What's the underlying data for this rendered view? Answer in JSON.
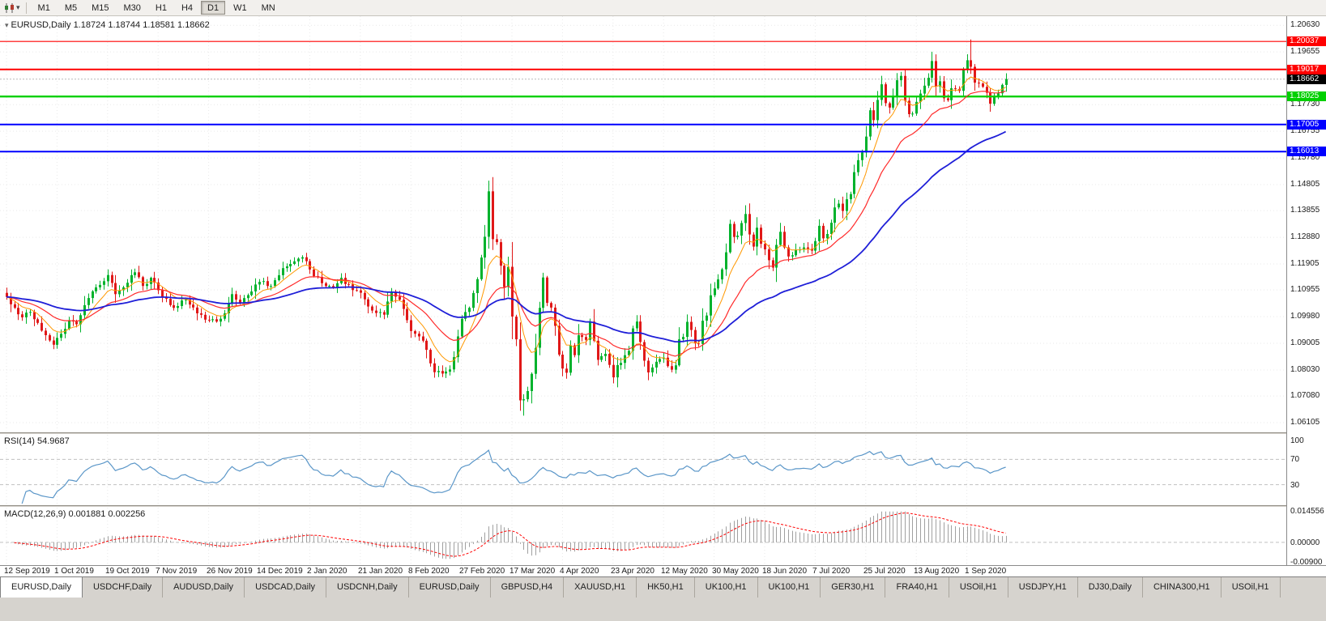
{
  "toolbar": {
    "timeframes": [
      "M1",
      "M5",
      "M15",
      "M30",
      "H1",
      "H4",
      "D1",
      "W1",
      "MN"
    ],
    "active_timeframe": "D1",
    "chart_icon": "candlestick-chart-icon",
    "dropdown_icon": "chevron-down-icon"
  },
  "header": {
    "symbol": "EURUSD,Daily",
    "ohlc": "1.18724 1.18744 1.18581 1.18662"
  },
  "chart_data": {
    "type": "candlestick",
    "title": "EURUSD,Daily",
    "ohlc_display": "1.18724 1.18744 1.18581 1.18662",
    "x_labels": [
      "12 Sep 2019",
      "1 Oct 2019",
      "19 Oct 2019",
      "7 Nov 2019",
      "26 Nov 2019",
      "14 Dec 2019",
      "2 Jan 2020",
      "21 Jan 2020",
      "8 Feb 2020",
      "27 Feb 2020",
      "17 Mar 2020",
      "4 Apr 2020",
      "23 Apr 2020",
      "12 May 2020",
      "30 May 2020",
      "18 Jun 2020",
      "7 Jul 2020",
      "25 Jul 2020",
      "13 Aug 2020",
      "1 Sep 2020"
    ],
    "y_axis": {
      "top_price": 1.2096,
      "bottom_price": 1.0575,
      "ticks": [
        "1.20630",
        "1.19655",
        "1.17730",
        "1.16755",
        "1.15780",
        "1.14805",
        "1.13855",
        "1.12880",
        "1.11905",
        "1.10955",
        "1.09980",
        "1.09005",
        "1.08030",
        "1.07080",
        "1.06105"
      ]
    },
    "levels": [
      {
        "price": 1.20037,
        "label": "1.20037",
        "color": "#ff0000",
        "width": 1.2
      },
      {
        "price": 1.19017,
        "label": "1.19017",
        "color": "#ff0000",
        "width": 2
      },
      {
        "price": 1.18025,
        "label": "1.18025",
        "color": "#00d000",
        "width": 2.4
      },
      {
        "price": 1.17005,
        "label": "1.17005",
        "color": "#0000ff",
        "width": 2
      },
      {
        "price": 1.16013,
        "label": "1.16013",
        "color": "#0000ff",
        "width": 2
      }
    ],
    "bid": {
      "price": 1.18662,
      "label": "1.18662",
      "box_color": "#000000"
    },
    "up_color": "#00b22c",
    "down_color": "#e01818",
    "moving_averages": [
      {
        "period": 8,
        "method": "ema",
        "color": "#ff9800",
        "width": 1
      },
      {
        "period": 21,
        "method": "ema",
        "color": "#ff2a2a",
        "width": 1.2
      },
      {
        "period": 55,
        "method": "ema",
        "color": "#1f1fd8",
        "width": 1.8
      }
    ],
    "bars": {
      "count": 258,
      "anchors": [
        [
          0,
          1.107
        ],
        [
          2,
          1.103
        ],
        [
          4,
          1.0995
        ],
        [
          6,
          1.1015
        ],
        [
          8,
          1.0975
        ],
        [
          10,
          1.093
        ],
        [
          12,
          1.0895
        ],
        [
          14,
          1.0935
        ],
        [
          16,
          1.0985
        ],
        [
          18,
          1.097
        ],
        [
          20,
          1.104
        ],
        [
          23,
          1.1105
        ],
        [
          26,
          1.115
        ],
        [
          28,
          1.108
        ],
        [
          30,
          1.1105
        ],
        [
          33,
          1.116
        ],
        [
          35,
          1.111
        ],
        [
          37,
          1.114
        ],
        [
          40,
          1.107
        ],
        [
          43,
          1.103
        ],
        [
          46,
          1.106
        ],
        [
          49,
          1.101
        ],
        [
          52,
          1.0985
        ],
        [
          54,
          1.098
        ],
        [
          56,
          1.101
        ],
        [
          58,
          1.108
        ],
        [
          60,
          1.105
        ],
        [
          63,
          1.109
        ],
        [
          65,
          1.1125
        ],
        [
          68,
          1.111
        ],
        [
          71,
          1.1175
        ],
        [
          74,
          1.12
        ],
        [
          76,
          1.1215
        ],
        [
          78,
          1.117
        ],
        [
          81,
          1.112
        ],
        [
          84,
          1.1105
        ],
        [
          86,
          1.114
        ],
        [
          89,
          1.1095
        ],
        [
          91,
          1.1085
        ],
        [
          94,
          1.102
        ],
        [
          97,
          1.1005
        ],
        [
          99,
          1.109
        ],
        [
          101,
          1.106
        ],
        [
          104,
          1.0945
        ],
        [
          107,
          1.091
        ],
        [
          110,
          1.0795
        ],
        [
          112,
          1.079
        ],
        [
          114,
          1.0805
        ],
        [
          115,
          1.085
        ],
        [
          117,
          1.099
        ],
        [
          119,
          1.103
        ],
        [
          121,
          1.1135
        ],
        [
          123,
          1.129
        ],
        [
          124,
          1.1456
        ],
        [
          125,
          1.1281
        ],
        [
          126,
          1.127
        ],
        [
          127,
          1.1184
        ],
        [
          128,
          1.1106
        ],
        [
          129,
          1.118
        ],
        [
          130,
          1.0998
        ],
        [
          131,
          1.0915
        ],
        [
          132,
          1.0692
        ],
        [
          133,
          1.0696
        ],
        [
          134,
          1.0726
        ],
        [
          135,
          1.0789
        ],
        [
          136,
          1.0884
        ],
        [
          137,
          1.103
        ],
        [
          138,
          1.1141
        ],
        [
          139,
          1.1048
        ],
        [
          140,
          1.1031
        ],
        [
          141,
          1.0964
        ],
        [
          142,
          1.0859
        ],
        [
          143,
          1.0808
        ],
        [
          144,
          1.0793
        ],
        [
          145,
          1.0893
        ],
        [
          146,
          1.0857
        ],
        [
          147,
          1.093
        ],
        [
          149,
          1.0913
        ],
        [
          150,
          1.098
        ],
        [
          151,
          1.091
        ],
        [
          152,
          1.084
        ],
        [
          154,
          1.0862
        ],
        [
          156,
          1.0776
        ],
        [
          157,
          1.0821
        ],
        [
          158,
          1.0829
        ],
        [
          160,
          1.0873
        ],
        [
          161,
          1.0955
        ],
        [
          162,
          1.098
        ],
        [
          163,
          1.0905
        ],
        [
          164,
          1.0837
        ],
        [
          165,
          1.0794
        ],
        [
          167,
          1.0833
        ],
        [
          169,
          1.0848
        ],
        [
          170,
          1.0817
        ],
        [
          171,
          1.0804
        ],
        [
          172,
          1.082
        ],
        [
          173,
          1.0915
        ],
        [
          174,
          1.0924
        ],
        [
          175,
          1.0979
        ],
        [
          176,
          1.0949
        ],
        [
          177,
          1.09
        ],
        [
          178,
          1.0898
        ],
        [
          179,
          1.0983
        ],
        [
          180,
          1.1002
        ],
        [
          181,
          1.1076
        ],
        [
          182,
          1.1101
        ],
        [
          183,
          1.1134
        ],
        [
          184,
          1.1171
        ],
        [
          185,
          1.1233
        ],
        [
          186,
          1.1337
        ],
        [
          187,
          1.1289
        ],
        [
          188,
          1.1294
        ],
        [
          189,
          1.134
        ],
        [
          190,
          1.1373
        ],
        [
          191,
          1.1298
        ],
        [
          192,
          1.1254
        ],
        [
          193,
          1.1323
        ],
        [
          194,
          1.1264
        ],
        [
          195,
          1.1244
        ],
        [
          196,
          1.1204
        ],
        [
          197,
          1.1177
        ],
        [
          198,
          1.126
        ],
        [
          199,
          1.1308
        ],
        [
          200,
          1.1251
        ],
        [
          201,
          1.1218
        ],
        [
          203,
          1.1242
        ],
        [
          205,
          1.1251
        ],
        [
          207,
          1.1239
        ],
        [
          208,
          1.1274
        ],
        [
          209,
          1.133
        ],
        [
          210,
          1.1284
        ],
        [
          211,
          1.13
        ],
        [
          212,
          1.1341
        ],
        [
          213,
          1.1397
        ],
        [
          214,
          1.1411
        ],
        [
          215,
          1.1384
        ],
        [
          216,
          1.1427
        ],
        [
          217,
          1.1446
        ],
        [
          218,
          1.1526
        ],
        [
          219,
          1.157
        ],
        [
          220,
          1.1598
        ],
        [
          221,
          1.1656
        ],
        [
          222,
          1.1752
        ],
        [
          223,
          1.1716
        ],
        [
          224,
          1.179
        ],
        [
          225,
          1.1847
        ],
        [
          226,
          1.1778
        ],
        [
          227,
          1.1762
        ],
        [
          228,
          1.1803
        ],
        [
          229,
          1.1862
        ],
        [
          230,
          1.1878
        ],
        [
          231,
          1.1787
        ],
        [
          232,
          1.1738
        ],
        [
          233,
          1.174
        ],
        [
          234,
          1.1783
        ],
        [
          235,
          1.1813
        ],
        [
          236,
          1.1842
        ],
        [
          237,
          1.1871
        ],
        [
          238,
          1.1932
        ],
        [
          239,
          1.1839
        ],
        [
          240,
          1.1858
        ],
        [
          241,
          1.1796
        ],
        [
          242,
          1.1789
        ],
        [
          243,
          1.1833
        ],
        [
          244,
          1.183
        ],
        [
          245,
          1.1823
        ],
        [
          246,
          1.1903
        ],
        [
          247,
          1.1935
        ],
        [
          248,
          1.1911
        ],
        [
          249,
          1.1853
        ],
        [
          250,
          1.185
        ],
        [
          251,
          1.1838
        ],
        [
          252,
          1.1816
        ],
        [
          253,
          1.1776
        ],
        [
          254,
          1.1802
        ],
        [
          255,
          1.1814
        ],
        [
          256,
          1.1845
        ],
        [
          257,
          1.18662
        ]
      ],
      "spikes": [
        {
          "d": 12,
          "l": 1.0879
        },
        {
          "d": 112,
          "l": 1.0778
        },
        {
          "d": 124,
          "h": 1.1495
        },
        {
          "d": 132,
          "l": 1.0655
        },
        {
          "d": 133,
          "l": 1.0636
        },
        {
          "d": 138,
          "h": 1.1148
        },
        {
          "d": 190,
          "h": 1.1405
        },
        {
          "d": 238,
          "h": 1.1966
        },
        {
          "d": 248,
          "h": 1.2011
        }
      ]
    },
    "rsi": {
      "label": "RSI(14)",
      "value": "54.9687",
      "period": 14,
      "color": "#5a96c8",
      "levels": [
        70,
        30
      ],
      "axis_labels": [
        {
          "value": 100,
          "text": "100"
        },
        {
          "value": 70,
          "text": "70"
        },
        {
          "value": 30,
          "text": "30"
        }
      ]
    },
    "macd": {
      "label": "MACD(12,26,9)",
      "values": "0.001881 0.002256",
      "fast": 12,
      "slow": 26,
      "signal_period": 9,
      "bar_color": "#a0a0a0",
      "signal_color": "#ff0000",
      "max": 0.014556,
      "min": -0.009,
      "axis_labels": [
        {
          "value": 0.014556,
          "text": "0.014556"
        },
        {
          "value": 0,
          "text": "0.00000"
        },
        {
          "value": -0.009,
          "text": "-0.00900"
        }
      ]
    }
  },
  "tabs": {
    "items": [
      {
        "label": "EURUSD,Daily",
        "active": true
      },
      {
        "label": "USDCHF,Daily"
      },
      {
        "label": "AUDUSD,Daily"
      },
      {
        "label": "USDCAD,Daily"
      },
      {
        "label": "USDCNH,Daily"
      },
      {
        "label": "EURUSD,Daily"
      },
      {
        "label": "GBPUSD,H4"
      },
      {
        "label": "XAUUSD,H1"
      },
      {
        "label": "HK50,H1"
      },
      {
        "label": "UK100,H1"
      },
      {
        "label": "UK100,H1"
      },
      {
        "label": "GER30,H1"
      },
      {
        "label": "FRA40,H1"
      },
      {
        "label": "USOil,H1"
      },
      {
        "label": "USDJPY,H1"
      },
      {
        "label": "DJ30,Daily"
      },
      {
        "label": "CHINA300,H1"
      },
      {
        "label": "USOil,H1"
      }
    ]
  }
}
